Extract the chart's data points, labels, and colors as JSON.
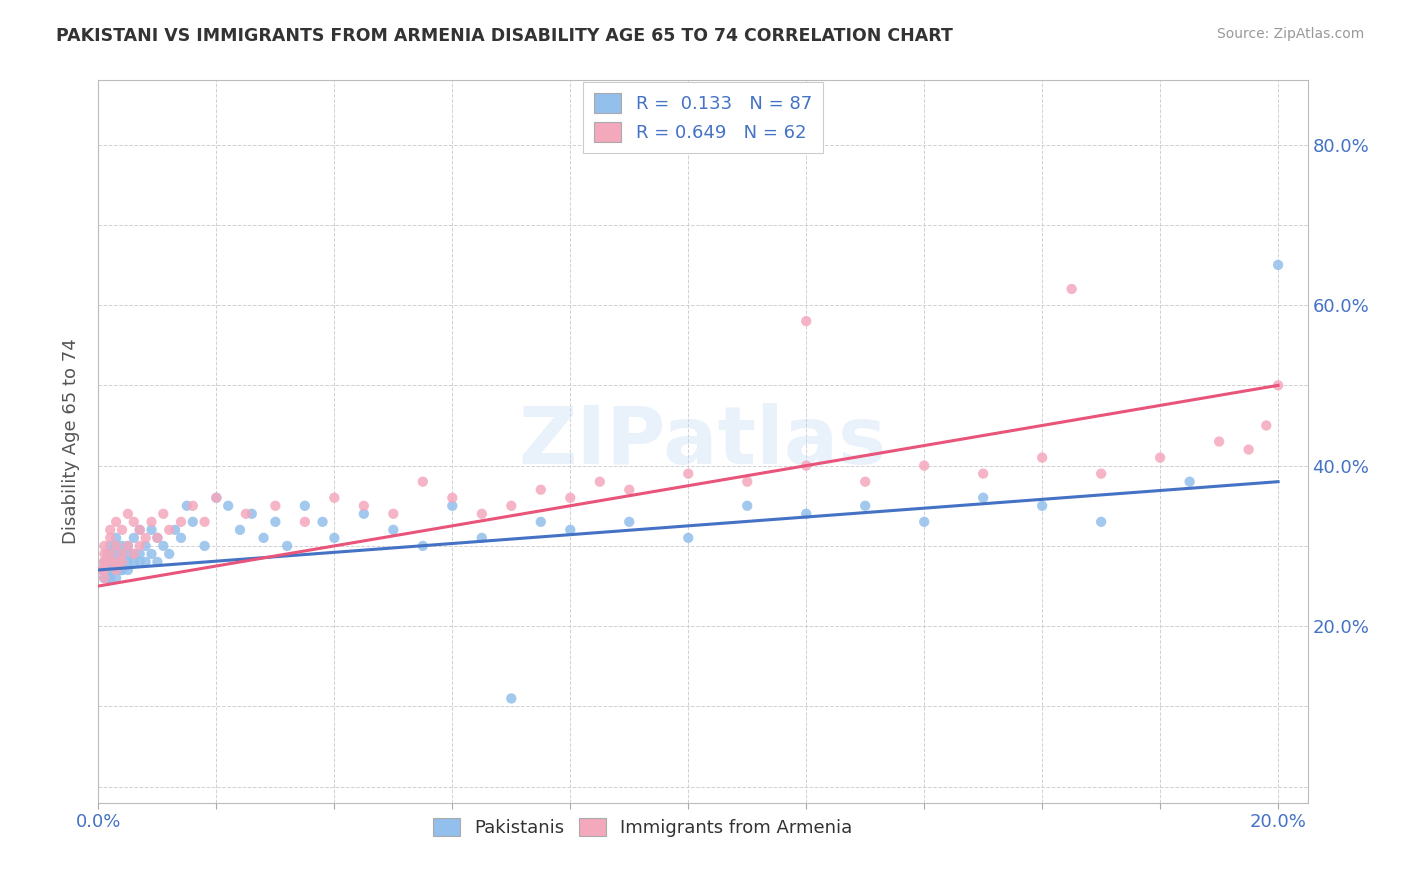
{
  "title": "PAKISTANI VS IMMIGRANTS FROM ARMENIA DISABILITY AGE 65 TO 74 CORRELATION CHART",
  "source": "Source: ZipAtlas.com",
  "ylabel": "Disability Age 65 to 74",
  "xlim": [
    0.0,
    0.205
  ],
  "ylim": [
    -0.02,
    0.88
  ],
  "blue_color": "#92BFEC",
  "pink_color": "#F4A8BC",
  "blue_line_color": "#4472C4",
  "pink_line_color": "#E8547A",
  "legend_R1": "R =  0.133   N = 87",
  "legend_R2": "R = 0.649   N = 62",
  "watermark": "ZIPatlas",
  "blue_line_x0": 0.0,
  "blue_line_y0": 0.27,
  "blue_line_x1": 0.2,
  "blue_line_y1": 0.38,
  "pink_line_x0": 0.0,
  "pink_line_y0": 0.25,
  "pink_line_x1": 0.2,
  "pink_line_y1": 0.5,
  "pak_x": [
    0.0005,
    0.001,
    0.001,
    0.001,
    0.001,
    0.001,
    0.001,
    0.001,
    0.001,
    0.001,
    0.001,
    0.0015,
    0.0015,
    0.0015,
    0.0015,
    0.002,
    0.002,
    0.002,
    0.002,
    0.002,
    0.002,
    0.002,
    0.0025,
    0.003,
    0.003,
    0.003,
    0.003,
    0.003,
    0.003,
    0.003,
    0.004,
    0.004,
    0.004,
    0.004,
    0.004,
    0.005,
    0.005,
    0.005,
    0.005,
    0.006,
    0.006,
    0.006,
    0.007,
    0.007,
    0.007,
    0.008,
    0.008,
    0.009,
    0.009,
    0.01,
    0.01,
    0.011,
    0.012,
    0.013,
    0.014,
    0.015,
    0.016,
    0.018,
    0.02,
    0.022,
    0.024,
    0.026,
    0.028,
    0.03,
    0.032,
    0.035,
    0.038,
    0.04,
    0.045,
    0.05,
    0.055,
    0.06,
    0.065,
    0.07,
    0.075,
    0.08,
    0.09,
    0.1,
    0.11,
    0.12,
    0.13,
    0.14,
    0.15,
    0.16,
    0.17,
    0.185,
    0.2
  ],
  "pak_y": [
    0.27,
    0.27,
    0.27,
    0.28,
    0.26,
    0.27,
    0.28,
    0.27,
    0.26,
    0.28,
    0.27,
    0.28,
    0.27,
    0.26,
    0.29,
    0.27,
    0.28,
    0.26,
    0.28,
    0.27,
    0.29,
    0.3,
    0.28,
    0.27,
    0.28,
    0.29,
    0.3,
    0.27,
    0.26,
    0.31,
    0.27,
    0.28,
    0.29,
    0.27,
    0.3,
    0.27,
    0.28,
    0.29,
    0.3,
    0.28,
    0.29,
    0.31,
    0.28,
    0.29,
    0.32,
    0.28,
    0.3,
    0.29,
    0.32,
    0.28,
    0.31,
    0.3,
    0.29,
    0.32,
    0.31,
    0.35,
    0.33,
    0.3,
    0.36,
    0.35,
    0.32,
    0.34,
    0.31,
    0.33,
    0.3,
    0.35,
    0.33,
    0.31,
    0.34,
    0.32,
    0.3,
    0.35,
    0.31,
    0.11,
    0.33,
    0.32,
    0.33,
    0.31,
    0.35,
    0.34,
    0.35,
    0.33,
    0.36,
    0.35,
    0.33,
    0.38,
    0.65
  ],
  "arm_x": [
    0.0005,
    0.001,
    0.001,
    0.001,
    0.001,
    0.001,
    0.001,
    0.002,
    0.002,
    0.002,
    0.002,
    0.003,
    0.003,
    0.003,
    0.003,
    0.004,
    0.004,
    0.004,
    0.005,
    0.005,
    0.006,
    0.006,
    0.007,
    0.007,
    0.008,
    0.009,
    0.01,
    0.011,
    0.012,
    0.014,
    0.016,
    0.018,
    0.02,
    0.025,
    0.03,
    0.035,
    0.04,
    0.045,
    0.05,
    0.055,
    0.06,
    0.065,
    0.07,
    0.075,
    0.08,
    0.085,
    0.09,
    0.1,
    0.11,
    0.12,
    0.13,
    0.14,
    0.15,
    0.16,
    0.17,
    0.18,
    0.19,
    0.195,
    0.198,
    0.2,
    0.165,
    0.12
  ],
  "arm_y": [
    0.27,
    0.28,
    0.27,
    0.29,
    0.26,
    0.3,
    0.28,
    0.29,
    0.31,
    0.28,
    0.32,
    0.28,
    0.3,
    0.27,
    0.33,
    0.29,
    0.32,
    0.28,
    0.3,
    0.34,
    0.29,
    0.33,
    0.3,
    0.32,
    0.31,
    0.33,
    0.31,
    0.34,
    0.32,
    0.33,
    0.35,
    0.33,
    0.36,
    0.34,
    0.35,
    0.33,
    0.36,
    0.35,
    0.34,
    0.38,
    0.36,
    0.34,
    0.35,
    0.37,
    0.36,
    0.38,
    0.37,
    0.39,
    0.38,
    0.4,
    0.38,
    0.4,
    0.39,
    0.41,
    0.39,
    0.41,
    0.43,
    0.42,
    0.45,
    0.5,
    0.62,
    0.58
  ]
}
